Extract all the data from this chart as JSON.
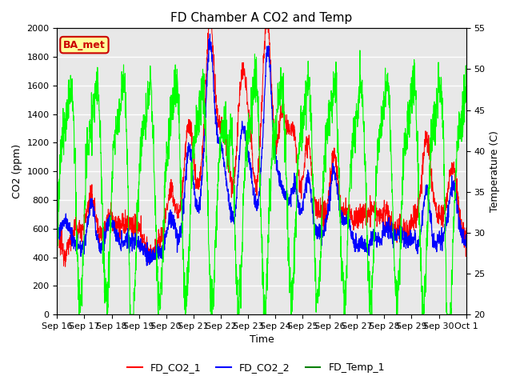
{
  "title": "FD Chamber A CO2 and Temp",
  "xlabel": "Time",
  "ylabel_left": "CO2 (ppm)",
  "ylabel_right": "Temperature (C)",
  "ylim_left": [
    0,
    2000
  ],
  "ylim_right": [
    20,
    55
  ],
  "yticks_left": [
    0,
    200,
    400,
    600,
    800,
    1000,
    1200,
    1400,
    1600,
    1800,
    2000
  ],
  "yticks_right": [
    20,
    25,
    30,
    35,
    40,
    45,
    50,
    55
  ],
  "xtick_labels": [
    "Sep 16",
    "Sep 17",
    "Sep 18",
    "Sep 19",
    "Sep 20",
    "Sep 21",
    "Sep 22",
    "Sep 23",
    "Sep 24",
    "Sep 25",
    "Sep 26",
    "Sep 27",
    "Sep 28",
    "Sep 29",
    "Sep 30",
    "Oct 1"
  ],
  "legend_labels": [
    "FD_CO2_1",
    "FD_CO2_2",
    "FD_Temp_1"
  ],
  "legend_colors": [
    "red",
    "blue",
    "green"
  ],
  "annotation_text": "BA_met",
  "annotation_color": "#cc0000",
  "annotation_bg": "#ffff99",
  "line_colors": [
    "red",
    "blue",
    "lime"
  ],
  "plot_bg": "#e8e8e8",
  "grid_color": "white",
  "title_fontsize": 11,
  "axis_fontsize": 9,
  "tick_fontsize": 8,
  "n_days": 15.5,
  "n_points": 2000,
  "figsize": [
    6.4,
    4.8
  ],
  "dpi": 100
}
